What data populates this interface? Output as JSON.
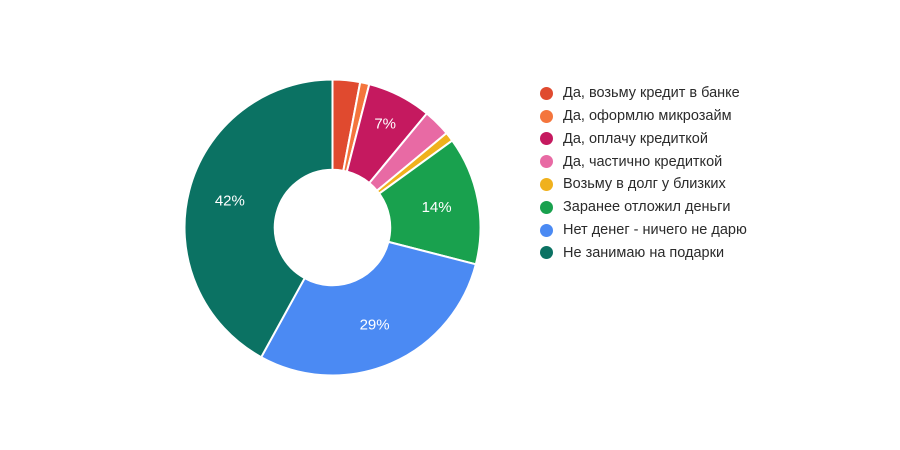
{
  "chart_data": {
    "type": "pie",
    "subtype": "donut",
    "hole_ratio": 0.39,
    "start_angle_deg": 0,
    "direction": "clockwise",
    "background_color": "#ffffff",
    "slice_label_color": "#ffffff",
    "legend_position": "right",
    "legend_text_color": "#2b2b2b",
    "slices": [
      {
        "label": "Да, возьму кредит в банке",
        "value": 3,
        "color": "#e04a2f",
        "slice_label": ""
      },
      {
        "label": "Да, оформлю микрозайм",
        "value": 1,
        "color": "#f4753d",
        "slice_label": ""
      },
      {
        "label": "Да, оплачу кредиткой",
        "value": 7,
        "color": "#c5195f",
        "slice_label": "7%"
      },
      {
        "label": "Да, частично кредиткой",
        "value": 3,
        "color": "#e86aa4",
        "slice_label": ""
      },
      {
        "label": "Возьму в долг у близких",
        "value": 1,
        "color": "#f0b11d",
        "slice_label": ""
      },
      {
        "label": "Заранее отложил деньги",
        "value": 14,
        "color": "#19a14e",
        "slice_label": "14%"
      },
      {
        "label": "Нет денег - ничего не дарю",
        "value": 29,
        "color": "#4b8af3",
        "slice_label": "29%"
      },
      {
        "label": "Не занимаю на подарки",
        "value": 42,
        "color": "#0b7263",
        "slice_label": "42%"
      }
    ]
  }
}
